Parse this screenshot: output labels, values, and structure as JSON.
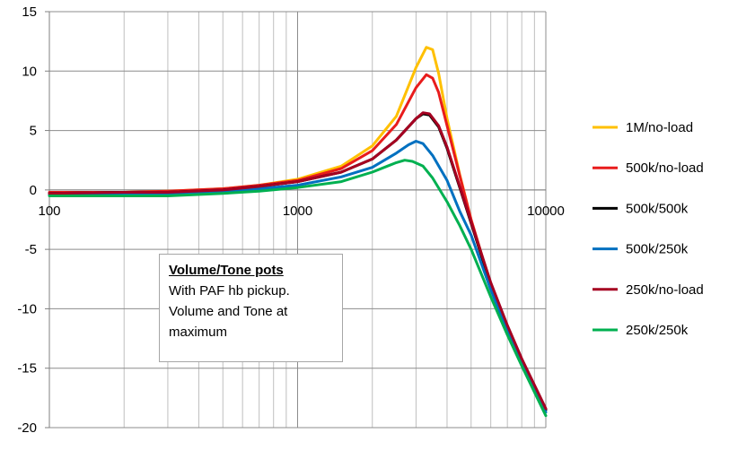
{
  "chart_data": {
    "type": "line",
    "title": "",
    "xlabel": "",
    "ylabel": "",
    "x_scale": "log",
    "xlim": [
      100,
      10000
    ],
    "ylim": [
      -20,
      15
    ],
    "x_ticks": [
      100,
      1000,
      10000
    ],
    "x_tick_labels": [
      "100",
      "1000",
      "10000"
    ],
    "y_ticks": [
      15,
      10,
      5,
      0,
      -5,
      -10,
      -15,
      -20
    ],
    "y_tick_labels": [
      "15",
      "10",
      "5",
      "0",
      "-5",
      "-10",
      "-15",
      "-20"
    ],
    "grid": true,
    "legend_position": "right",
    "series": [
      {
        "name": "1M/no-load",
        "color": "#ffc000",
        "x": [
          100,
          200,
          300,
          500,
          700,
          1000,
          1500,
          2000,
          2500,
          3000,
          3300,
          3500,
          3700,
          4000,
          4500,
          5000,
          6000,
          7000,
          8000,
          10000
        ],
        "y": [
          -0.3,
          -0.2,
          -0.1,
          0.1,
          0.4,
          0.9,
          2.0,
          3.7,
          6.2,
          10.3,
          12.0,
          11.8,
          9.8,
          6.0,
          1.3,
          -2.5,
          -8.0,
          -11.5,
          -14.3,
          -18.5
        ]
      },
      {
        "name": "500k/no-load",
        "color": "#e81c1c",
        "x": [
          100,
          200,
          300,
          500,
          700,
          1000,
          1500,
          2000,
          2500,
          3000,
          3300,
          3500,
          3700,
          4000,
          4500,
          5000,
          6000,
          7000,
          8000,
          10000
        ],
        "y": [
          -0.2,
          -0.2,
          -0.1,
          0.1,
          0.4,
          0.8,
          1.8,
          3.3,
          5.5,
          8.6,
          9.7,
          9.4,
          8.2,
          5.4,
          1.2,
          -2.5,
          -8.0,
          -11.5,
          -14.3,
          -18.5
        ]
      },
      {
        "name": "500k/500k",
        "color": "#000000",
        "x": [
          100,
          200,
          300,
          500,
          700,
          1000,
          1500,
          2000,
          2500,
          3000,
          3200,
          3400,
          3700,
          4000,
          4500,
          5000,
          6000,
          7000,
          8000,
          10000
        ],
        "y": [
          -0.3,
          -0.2,
          -0.2,
          0.0,
          0.3,
          0.7,
          1.5,
          2.6,
          4.2,
          6.0,
          6.4,
          6.3,
          5.3,
          3.5,
          0.2,
          -2.8,
          -8.0,
          -11.5,
          -14.3,
          -18.5
        ]
      },
      {
        "name": "500k/250k",
        "color": "#0070c0",
        "x": [
          100,
          200,
          300,
          500,
          700,
          1000,
          1500,
          2000,
          2500,
          2800,
          3000,
          3200,
          3500,
          4000,
          4500,
          5000,
          6000,
          7000,
          8000,
          10000
        ],
        "y": [
          -0.4,
          -0.3,
          -0.3,
          -0.1,
          0.1,
          0.4,
          1.1,
          1.9,
          3.1,
          3.8,
          4.1,
          3.9,
          2.9,
          0.8,
          -1.8,
          -3.8,
          -8.4,
          -11.8,
          -14.5,
          -18.7
        ]
      },
      {
        "name": "250k/no-load",
        "color": "#a50021",
        "x": [
          100,
          200,
          300,
          500,
          700,
          1000,
          1500,
          2000,
          2500,
          3000,
          3200,
          3400,
          3700,
          4000,
          4500,
          5000,
          6000,
          7000,
          8000,
          10000
        ],
        "y": [
          -0.3,
          -0.2,
          -0.2,
          0.0,
          0.3,
          0.7,
          1.5,
          2.6,
          4.2,
          6.0,
          6.5,
          6.4,
          5.4,
          3.6,
          0.3,
          -2.7,
          -7.8,
          -11.4,
          -14.2,
          -18.4
        ]
      },
      {
        "name": "250k/250k",
        "color": "#00b050",
        "x": [
          100,
          200,
          300,
          500,
          700,
          1000,
          1500,
          2000,
          2300,
          2500,
          2700,
          2900,
          3200,
          3500,
          4000,
          4500,
          5000,
          6000,
          7000,
          8000,
          10000
        ],
        "y": [
          -0.5,
          -0.5,
          -0.5,
          -0.3,
          -0.1,
          0.2,
          0.7,
          1.5,
          2.0,
          2.3,
          2.5,
          2.4,
          2.0,
          1.0,
          -1.0,
          -3.0,
          -5.0,
          -9.0,
          -12.2,
          -14.8,
          -19.0
        ]
      }
    ],
    "annotation": {
      "title": "Volume/Tone pots",
      "lines": [
        "With PAF hb pickup.",
        "Volume and Tone at",
        "maximum"
      ]
    }
  }
}
